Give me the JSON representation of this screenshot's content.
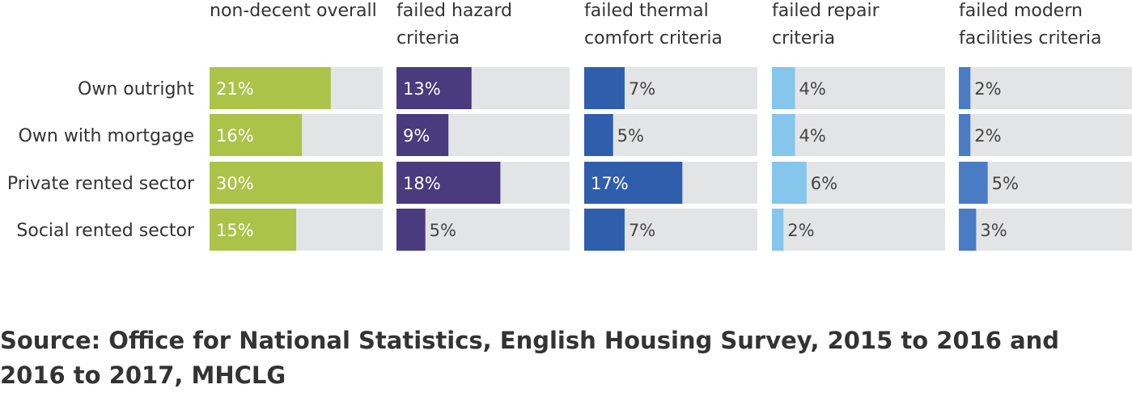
{
  "chart_data": {
    "type": "bar",
    "orientation": "horizontal",
    "layout": "small-multiples",
    "categories": [
      "Own outright",
      "Own with mortgage",
      "Private rented sector",
      "Social rented sector"
    ],
    "panels": [
      {
        "title_lines": [
          "non-decent overall"
        ],
        "color": "#acc249",
        "values": [
          21,
          16,
          30,
          15
        ],
        "labels": [
          "21%",
          "16%",
          "30%",
          "15%"
        ]
      },
      {
        "title_lines": [
          "failed hazard",
          "criteria"
        ],
        "color": "#4a3a7e",
        "values": [
          13,
          9,
          18,
          5
        ],
        "labels": [
          "13%",
          "9%",
          "18%",
          "5%"
        ]
      },
      {
        "title_lines": [
          "failed thermal",
          "comfort criteria"
        ],
        "color": "#2f5ead",
        "values": [
          7,
          5,
          17,
          7
        ],
        "labels": [
          "7%",
          "5%",
          "17%",
          "7%"
        ]
      },
      {
        "title_lines": [
          "failed repair",
          "criteria"
        ],
        "color": "#86c5ec",
        "values": [
          4,
          4,
          6,
          2
        ],
        "labels": [
          "4%",
          "4%",
          "6%",
          "2%"
        ]
      },
      {
        "title_lines": [
          "failed modern",
          "facilities criteria"
        ],
        "color": "#4a7cc6",
        "values": [
          2,
          2,
          5,
          3
        ],
        "labels": [
          "2%",
          "2%",
          "5%",
          "3%"
        ]
      }
    ],
    "xlim": [
      0,
      30
    ],
    "background_track_color": "#e3e4e6",
    "label_color_inside": "#ffffff",
    "label_color_outside": "#444444"
  },
  "source": "Source: Office for National Statistics, English Housing Survey, 2015 to 2016 and 2016 to 2017, MHCLG"
}
